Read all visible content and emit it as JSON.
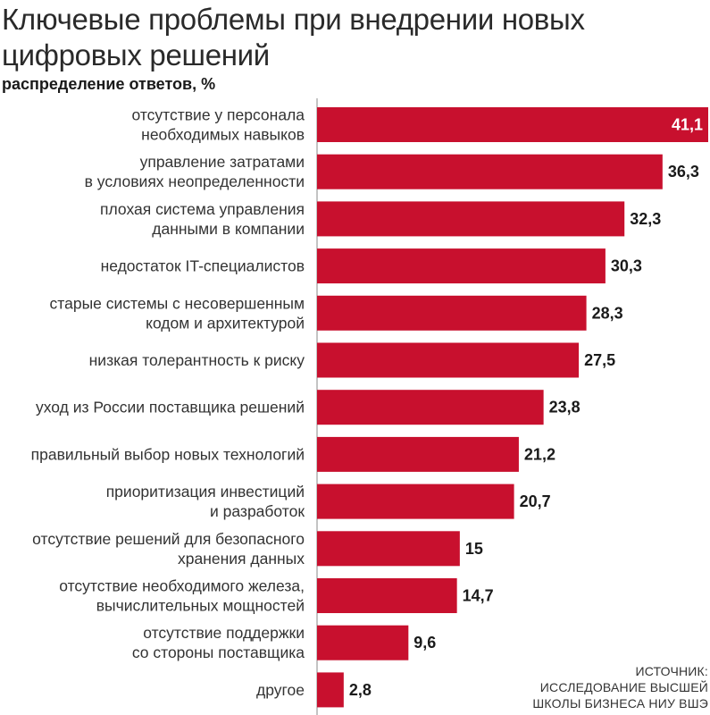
{
  "title_line1": "Ключевые проблемы при внедрении новых",
  "title_line2": "цифровых решений",
  "subtitle": "распределение ответов, %",
  "source": {
    "line1": "ИСТОЧНИК:",
    "line2": "ИССЛЕДОВАНИЕ ВЫСШЕЙ",
    "line3": "ШКОЛЫ БИЗНЕСА НИУ ВШЭ"
  },
  "colors": {
    "bar": "#c8102e",
    "axis": "#888888",
    "value_text": "#1a1a1a",
    "value_text_inside": "#ffffff"
  },
  "chart_data": {
    "type": "bar",
    "orientation": "horizontal",
    "title": "Ключевые проблемы при внедрении новых цифровых решений",
    "subtitle": "распределение ответов, %",
    "xlim": [
      0,
      41.1
    ],
    "grid": false,
    "categories": [
      [
        "отсутствие у персонала",
        "необходимых навыков"
      ],
      [
        "управление затратами",
        "в условиях неопределенности"
      ],
      [
        "плохая система управления",
        "данными в компании"
      ],
      [
        "недостаток IT-специалистов"
      ],
      [
        "старые системы с несовершенным",
        "кодом и архитектурой"
      ],
      [
        "низкая толерантность к риску"
      ],
      [
        "уход из России поставщика решений"
      ],
      [
        "правильный выбор новых технологий"
      ],
      [
        "приоритизация инвестиций",
        "и разработок"
      ],
      [
        "отсутствие решений для безопасного",
        "хранения данных"
      ],
      [
        "отсутствие необходимого железа,",
        "вычислительных мощностей"
      ],
      [
        "отсутствие поддержки",
        "со стороны поставщика"
      ],
      [
        "другое"
      ]
    ],
    "values": [
      41.1,
      36.3,
      32.3,
      30.3,
      28.3,
      27.5,
      23.8,
      21.2,
      20.7,
      15,
      14.7,
      9.6,
      2.8
    ],
    "value_labels": [
      "41,1",
      "36,3",
      "32,3",
      "30,3",
      "28,3",
      "27,5",
      "23,8",
      "21,2",
      "20,7",
      "15",
      "14,7",
      "9,6",
      "2,8"
    ]
  }
}
